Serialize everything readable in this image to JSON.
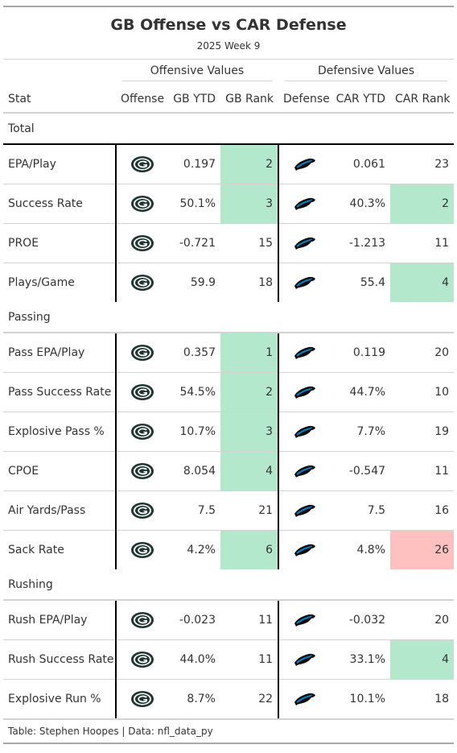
{
  "title": "GB Offense vs CAR Defense",
  "subtitle": "2025 Week 9",
  "spanners": {
    "offense": "Offensive Values",
    "defense": "Defensive Values"
  },
  "columns": {
    "stat": "Stat",
    "offense": "Offense",
    "gb_ytd": "GB YTD",
    "gb_rank": "GB Rank",
    "defense": "Defense",
    "car_ytd": "CAR YTD",
    "car_rank": "CAR Rank"
  },
  "logos": {
    "offense": "packers-logo-icon",
    "defense": "panthers-logo-icon"
  },
  "colors": {
    "good": "#b3e8cc",
    "bad": "#ffc0c0",
    "packers_green": "#203731",
    "packers_gold": "#ffb612",
    "panthers_blue": "#0085ca"
  },
  "groups": [
    {
      "label": "Total",
      "rows": [
        {
          "stat": "EPA/Play",
          "gb_ytd": "0.197",
          "gb_rank": "2",
          "gb_rank_hl": "good",
          "car_ytd": "0.061",
          "car_rank": "23",
          "car_rank_hl": ""
        },
        {
          "stat": "Success Rate",
          "gb_ytd": "50.1%",
          "gb_rank": "3",
          "gb_rank_hl": "good",
          "car_ytd": "40.3%",
          "car_rank": "2",
          "car_rank_hl": "good"
        },
        {
          "stat": "PROE",
          "gb_ytd": "-0.721",
          "gb_rank": "15",
          "gb_rank_hl": "",
          "car_ytd": "-1.213",
          "car_rank": "11",
          "car_rank_hl": ""
        },
        {
          "stat": "Plays/Game",
          "gb_ytd": "59.9",
          "gb_rank": "18",
          "gb_rank_hl": "",
          "car_ytd": "55.4",
          "car_rank": "4",
          "car_rank_hl": "good"
        }
      ]
    },
    {
      "label": "Passing",
      "rows": [
        {
          "stat": "Pass EPA/Play",
          "gb_ytd": "0.357",
          "gb_rank": "1",
          "gb_rank_hl": "good",
          "car_ytd": "0.119",
          "car_rank": "20",
          "car_rank_hl": ""
        },
        {
          "stat": "Pass Success Rate",
          "gb_ytd": "54.5%",
          "gb_rank": "2",
          "gb_rank_hl": "good",
          "car_ytd": "44.7%",
          "car_rank": "10",
          "car_rank_hl": ""
        },
        {
          "stat": "Explosive Pass %",
          "gb_ytd": "10.7%",
          "gb_rank": "3",
          "gb_rank_hl": "good",
          "car_ytd": "7.7%",
          "car_rank": "19",
          "car_rank_hl": ""
        },
        {
          "stat": "CPOE",
          "gb_ytd": "8.054",
          "gb_rank": "4",
          "gb_rank_hl": "good",
          "car_ytd": "-0.547",
          "car_rank": "11",
          "car_rank_hl": ""
        },
        {
          "stat": "Air Yards/Pass",
          "gb_ytd": "7.5",
          "gb_rank": "21",
          "gb_rank_hl": "",
          "car_ytd": "7.5",
          "car_rank": "16",
          "car_rank_hl": ""
        },
        {
          "stat": "Sack Rate",
          "gb_ytd": "4.2%",
          "gb_rank": "6",
          "gb_rank_hl": "good",
          "car_ytd": "4.8%",
          "car_rank": "26",
          "car_rank_hl": "bad"
        }
      ]
    },
    {
      "label": "Rushing",
      "rows": [
        {
          "stat": "Rush EPA/Play",
          "gb_ytd": "-0.023",
          "gb_rank": "11",
          "gb_rank_hl": "",
          "car_ytd": "-0.032",
          "car_rank": "20",
          "car_rank_hl": ""
        },
        {
          "stat": "Rush Success Rate",
          "gb_ytd": "44.0%",
          "gb_rank": "11",
          "gb_rank_hl": "",
          "car_ytd": "33.1%",
          "car_rank": "4",
          "car_rank_hl": "good"
        },
        {
          "stat": "Explosive Run %",
          "gb_ytd": "8.7%",
          "gb_rank": "22",
          "gb_rank_hl": "",
          "car_ytd": "10.1%",
          "car_rank": "18",
          "car_rank_hl": ""
        }
      ]
    }
  ],
  "footer": "Table: Stephen Hoopes | Data: nfl_data_py"
}
